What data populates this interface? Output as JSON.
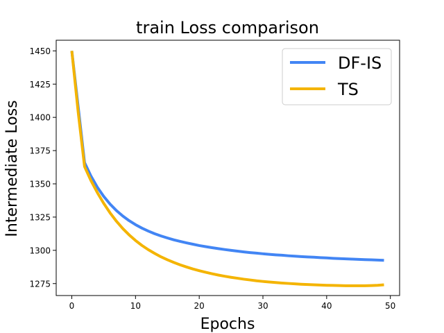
{
  "chart_data": {
    "type": "line",
    "title": "train Loss comparison",
    "xlabel": "Epochs",
    "ylabel": "Intermediate Loss",
    "xlim": [
      -2.45,
      51.45
    ],
    "ylim": [
      1266,
      1458
    ],
    "xticks": [
      0,
      10,
      20,
      30,
      40,
      50
    ],
    "yticks": [
      1275,
      1300,
      1325,
      1350,
      1375,
      1400,
      1425,
      1450
    ],
    "grid": false,
    "legend_position": "top-right",
    "series": [
      {
        "name": "DF-IS",
        "color": "#4285f4",
        "x": [
          0,
          1,
          2,
          3,
          4,
          5,
          6,
          7,
          8,
          9,
          10,
          11,
          12,
          13,
          14,
          15,
          16,
          17,
          18,
          19,
          20,
          21,
          22,
          23,
          24,
          25,
          26,
          27,
          28,
          29,
          30,
          31,
          32,
          33,
          34,
          35,
          36,
          37,
          38,
          39,
          40,
          41,
          42,
          43,
          44,
          45,
          46,
          47,
          48,
          49
        ],
        "y": [
          1450,
          1408,
          1366,
          1355.9,
          1347.5,
          1340.6,
          1334.8,
          1329.9,
          1325.8,
          1322.3,
          1319.3,
          1316.7,
          1314.5,
          1312.5,
          1310.8,
          1309.3,
          1307.9,
          1306.7,
          1305.6,
          1304.6,
          1303.6,
          1302.8,
          1302,
          1301.3,
          1300.6,
          1300,
          1299.4,
          1298.8,
          1298.3,
          1297.9,
          1297.4,
          1297,
          1296.6,
          1296.3,
          1295.9,
          1295.6,
          1295.3,
          1295,
          1294.8,
          1294.5,
          1294.3,
          1294,
          1293.8,
          1293.6,
          1293.4,
          1293.2,
          1293,
          1292.9,
          1292.7,
          1292.5
        ]
      },
      {
        "name": "TS",
        "color": "#f4b400",
        "x": [
          0,
          1,
          2,
          3,
          4,
          5,
          6,
          7,
          8,
          9,
          10,
          11,
          12,
          13,
          14,
          15,
          16,
          17,
          18,
          19,
          20,
          21,
          22,
          23,
          24,
          25,
          26,
          27,
          28,
          29,
          30,
          31,
          32,
          33,
          34,
          35,
          36,
          37,
          38,
          39,
          40,
          41,
          42,
          43,
          44,
          45,
          46,
          47,
          48,
          49
        ],
        "y": [
          1450,
          1404,
          1363,
          1352.5,
          1343.5,
          1335.4,
          1328.2,
          1321.9,
          1316.4,
          1311.6,
          1307.4,
          1303.7,
          1300.5,
          1297.7,
          1295.1,
          1292.9,
          1290.9,
          1289.1,
          1287.5,
          1286,
          1284.7,
          1283.5,
          1282.4,
          1281.4,
          1280.5,
          1279.7,
          1279,
          1278.3,
          1277.7,
          1277.1,
          1276.6,
          1276.2,
          1275.8,
          1275.4,
          1275.1,
          1274.8,
          1274.5,
          1274.3,
          1274.1,
          1273.9,
          1273.7,
          1273.6,
          1273.5,
          1273.4,
          1273.4,
          1273.4,
          1273.4,
          1273.5,
          1273.7,
          1274.1
        ]
      }
    ]
  }
}
